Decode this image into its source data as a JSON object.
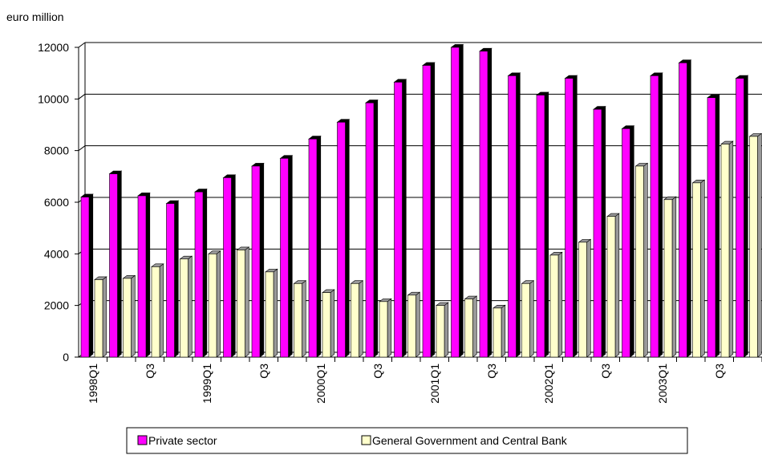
{
  "chart_data": {
    "type": "bar",
    "y_axis_label": "euro million",
    "categories": [
      "1998Q1",
      null,
      "Q3",
      null,
      "1999Q1",
      null,
      "Q3",
      null,
      "2000Q1",
      null,
      "Q3",
      null,
      "2001Q1",
      null,
      "Q3",
      null,
      "2002Q1",
      null,
      "Q3",
      null,
      "2003Q1",
      null,
      "Q3",
      null
    ],
    "series": [
      {
        "name": "Private sector",
        "color": "#ff00ff",
        "values": [
          6200,
          7100,
          6250,
          5950,
          6400,
          6950,
          7400,
          7700,
          8450,
          9100,
          9850,
          10650,
          11300,
          12000,
          11850,
          10900,
          10150,
          10800,
          9600,
          8850,
          10900,
          11400,
          10050,
          10800
        ]
      },
      {
        "name": "General Government and Central Bank",
        "color": "#ffffcc",
        "values": [
          3000,
          3050,
          3500,
          3800,
          4000,
          4150,
          3300,
          2850,
          2500,
          2850,
          2150,
          2400,
          2000,
          2250,
          1900,
          2850,
          3950,
          4450,
          5450,
          7400,
          6100,
          6750,
          8250,
          8550
        ]
      }
    ],
    "ylim": [
      0,
      12000
    ],
    "yticks": [
      0,
      2000,
      4000,
      6000,
      8000,
      10000,
      12000
    ],
    "grid": true,
    "legend": "bottom"
  }
}
